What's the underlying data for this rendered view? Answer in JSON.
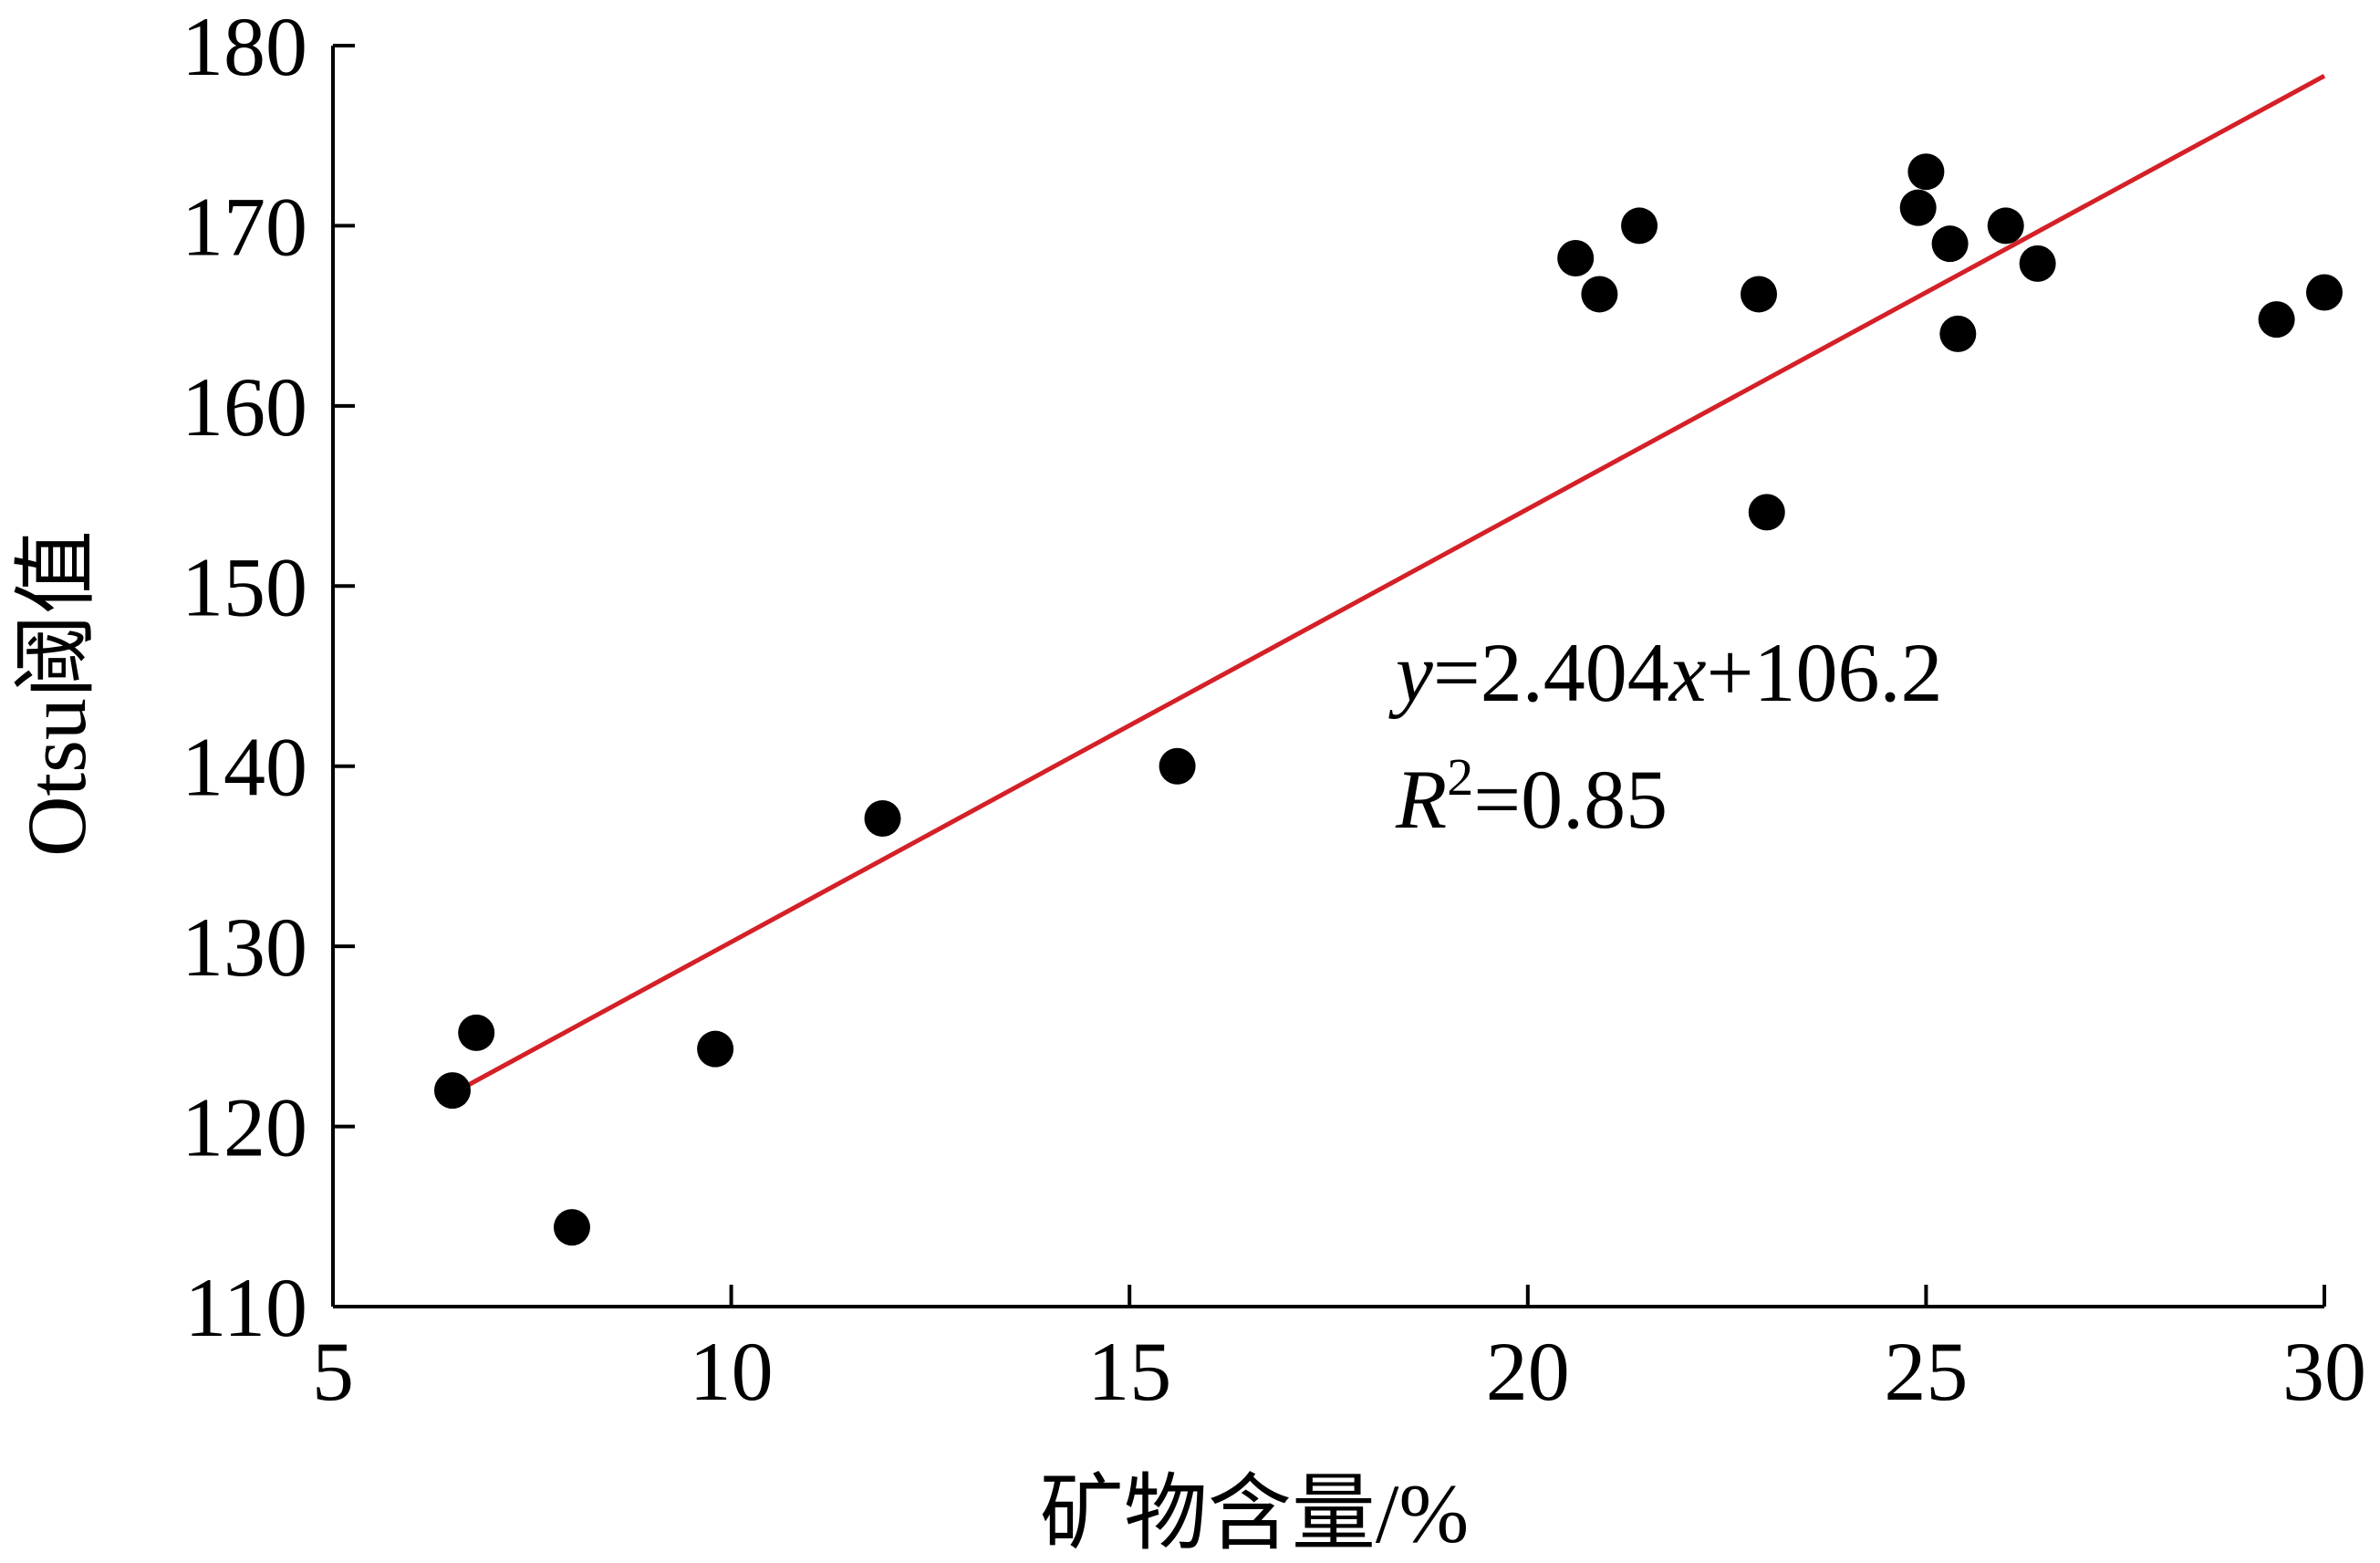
{
  "chart_data": {
    "type": "scatter",
    "title": "",
    "xlabel": "矿物含量/%",
    "ylabel": "Otsu阈值",
    "xlim": [
      5,
      30
    ],
    "ylim": [
      110,
      180
    ],
    "x_ticks": [
      "5",
      "10",
      "15",
      "20",
      "25",
      "30"
    ],
    "y_ticks": [
      "110",
      "120",
      "130",
      "140",
      "150",
      "160",
      "170",
      "180"
    ],
    "grid": false,
    "legend": "none",
    "series": [
      {
        "points": [
          {
            "x": 6.5,
            "y": 122.0
          },
          {
            "x": 6.8,
            "y": 125.2
          },
          {
            "x": 8.0,
            "y": 114.4
          },
          {
            "x": 9.8,
            "y": 124.3
          },
          {
            "x": 11.9,
            "y": 137.1
          },
          {
            "x": 15.6,
            "y": 140.0
          },
          {
            "x": 20.6,
            "y": 168.2
          },
          {
            "x": 20.9,
            "y": 166.2
          },
          {
            "x": 21.4,
            "y": 170.0
          },
          {
            "x": 22.9,
            "y": 166.2
          },
          {
            "x": 23.0,
            "y": 154.1
          },
          {
            "x": 24.9,
            "y": 171.0
          },
          {
            "x": 25.0,
            "y": 173.0
          },
          {
            "x": 25.3,
            "y": 169.0
          },
          {
            "x": 25.4,
            "y": 164.0
          },
          {
            "x": 26.0,
            "y": 170.0
          },
          {
            "x": 26.4,
            "y": 167.9
          },
          {
            "x": 29.4,
            "y": 164.8
          },
          {
            "x": 30.0,
            "y": 166.3
          }
        ]
      }
    ],
    "fit_line": {
      "slope": 2.404,
      "intercept": 106.2,
      "x_range": [
        6.6,
        30.0
      ],
      "color": "#d42027"
    },
    "annotation": {
      "y_var": "y",
      "eq_part1": "=2.404",
      "x_var": "x",
      "eq_part2": "+106.2",
      "r_var": "R",
      "r_sup": "2",
      "r_value": "=0.85"
    }
  }
}
